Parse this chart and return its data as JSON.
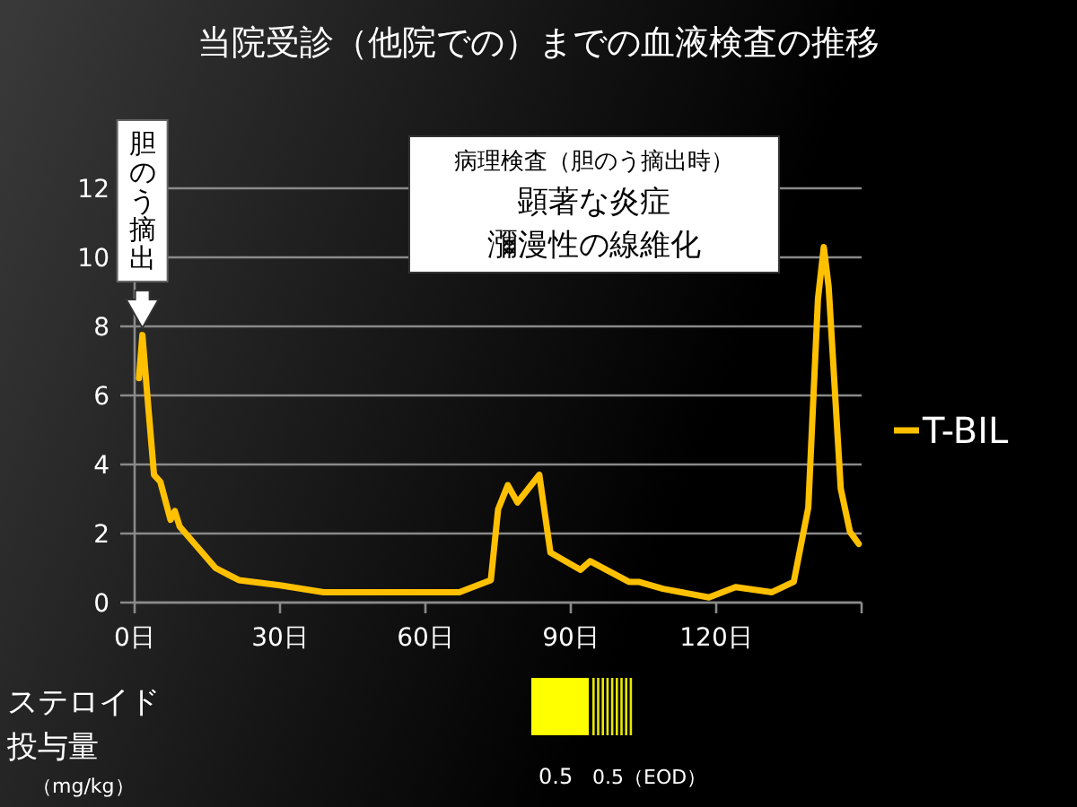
{
  "chart_data": {
    "type": "line",
    "title": "当院受診（他院での）までの血液検査の推移",
    "xlim": [
      0,
      150
    ],
    "ylim": [
      0,
      12
    ],
    "xticks": [
      {
        "value": 0,
        "label": "0日"
      },
      {
        "value": 30,
        "label": "30日"
      },
      {
        "value": 60,
        "label": "60日"
      },
      {
        "value": 90,
        "label": "90日"
      },
      {
        "value": 120,
        "label": "120日"
      },
      {
        "value": 150,
        "label": null
      }
    ],
    "yticks": [
      0,
      2,
      4,
      6,
      8,
      10,
      12
    ],
    "grid": "y",
    "legend": "right",
    "marker": "none",
    "line_style": "solid",
    "series": [
      {
        "name": "T-BIL",
        "color": "#ffc000",
        "x": [
          0.9,
          1.6,
          2.5,
          4,
          5.3,
          7.4,
          8.3,
          9.3,
          16.7,
          21.5,
          30,
          39,
          67,
          73.5,
          75,
          77,
          79,
          83.5,
          85.8,
          92,
          94,
          102,
          104,
          109,
          118.5,
          124,
          131.5,
          136,
          139,
          141,
          142.2,
          143.2,
          145.7,
          147.6,
          149.4
        ],
        "values": [
          6.5,
          7.75,
          6.2,
          3.7,
          3.5,
          2.4,
          2.65,
          2.2,
          1.0,
          0.65,
          0.5,
          0.3,
          0.3,
          0.65,
          2.7,
          3.4,
          2.9,
          3.7,
          1.45,
          0.95,
          1.2,
          0.6,
          0.6,
          0.4,
          0.15,
          0.45,
          0.3,
          0.6,
          2.75,
          8.8,
          10.3,
          9.15,
          3.3,
          2.05,
          1.7
        ]
      }
    ],
    "annotations": [
      {
        "text": "胆のう摘出",
        "x": 1.6,
        "y": 7.75
      },
      "病理検査（胆のう摘出時）",
      "顕著な炎症",
      "瀰漫性の線維化",
      "ステロイド",
      "投与量",
      "（mg/kg）",
      "0.5",
      "0.5（EOD）"
    ]
  }
}
